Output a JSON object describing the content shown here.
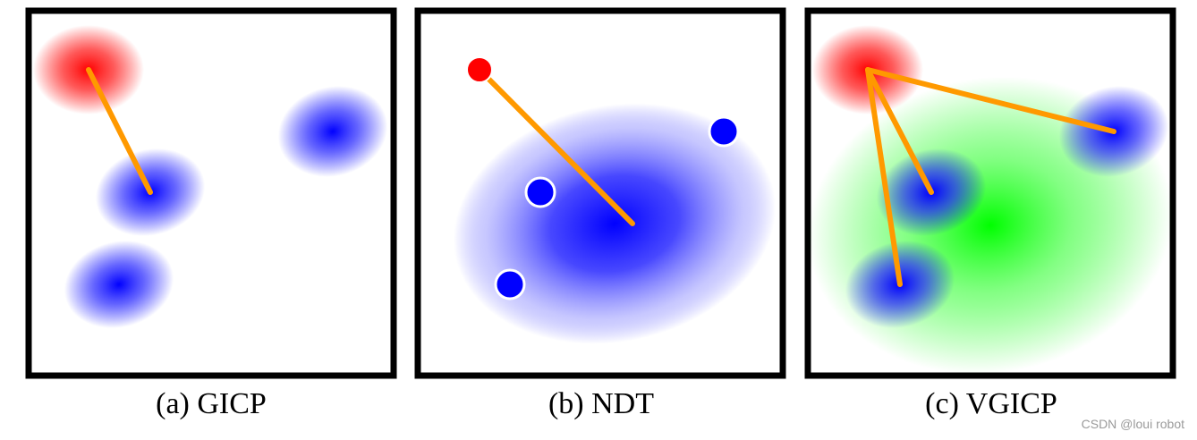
{
  "colors": {
    "frame": "#000000",
    "source": "#ff0000",
    "target": "#0000ff",
    "voxel": "#00ff00",
    "correspondence": "#ff9900",
    "point_outline": "#ffffff"
  },
  "panels": [
    {
      "id": "gicp",
      "caption": "(a)  GICP"
    },
    {
      "id": "ndt",
      "caption": "(b)  NDT"
    },
    {
      "id": "vgicp",
      "caption": "(c)  VGICP"
    }
  ],
  "watermark": "CSDN @loui robot"
}
